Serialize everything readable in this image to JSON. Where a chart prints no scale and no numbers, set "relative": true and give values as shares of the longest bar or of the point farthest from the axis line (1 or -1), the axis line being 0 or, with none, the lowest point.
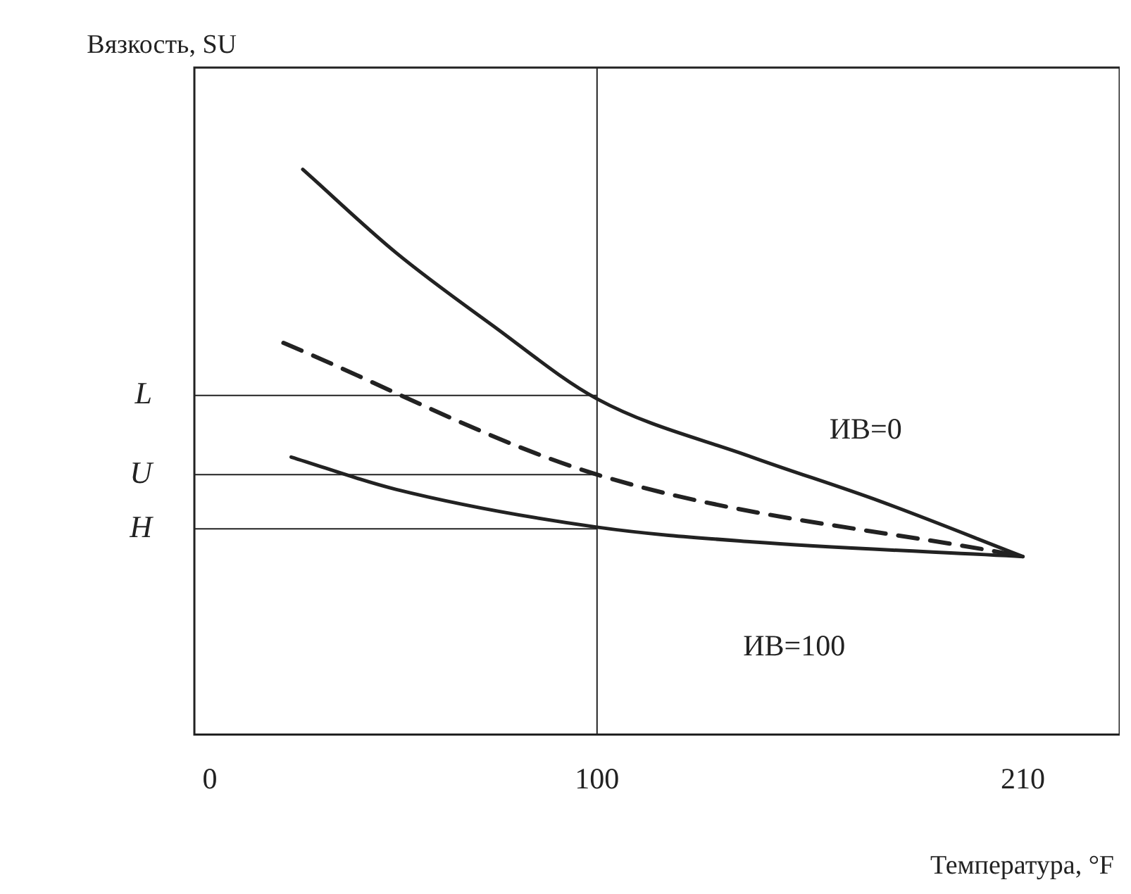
{
  "chart_data": {
    "type": "line",
    "relative": true,
    "xlabel": "Температура, °F",
    "ylabel": "Вязкость, SU",
    "xlim": [
      -4,
      235
    ],
    "xticks": [
      0,
      100,
      210
    ],
    "grid": false,
    "legend": false,
    "marker": "none",
    "series": [
      {
        "name": "ИВ=0",
        "color": "#222222",
        "line_style": "solid",
        "x": [
          24,
          48,
          73,
          100,
          140,
          173,
          210
        ],
        "values": [
          1.0,
          0.853,
          0.724,
          0.594,
          0.491,
          0.413,
          0.315
        ]
      },
      {
        "color": "#222222",
        "line_style": "dashed",
        "x": [
          19,
          100,
          210
        ],
        "values": [
          0.693,
          0.46,
          0.315
        ]
      },
      {
        "name": "ИВ=100",
        "color": "#222222",
        "line_style": "solid",
        "x": [
          21,
          48,
          100,
          140,
          210
        ],
        "values": [
          0.491,
          0.434,
          0.367,
          0.341,
          0.315
        ]
      }
    ],
    "ref_lines": [
      {
        "axis": "y",
        "value": 0.6,
        "label": "L"
      },
      {
        "axis": "y",
        "value": 0.46,
        "label": "U"
      },
      {
        "axis": "y",
        "value": 0.364,
        "label": "H"
      },
      {
        "axis": "x",
        "value": 100,
        "label": null
      }
    ]
  }
}
